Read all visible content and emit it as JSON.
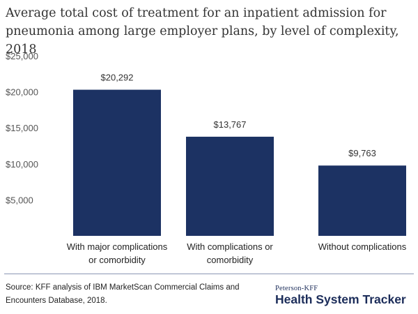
{
  "chart_data": {
    "type": "bar",
    "title": "Average total cost of treatment for an inpatient admission for pneumonia among large employer plans, by level of complexity, 2018",
    "categories": [
      [
        "With major complications",
        "or comorbidity"
      ],
      [
        "With complications or",
        "comorbidity"
      ],
      [
        "Without complications"
      ]
    ],
    "values": [
      20292,
      13767,
      9763
    ],
    "data_labels": [
      "$20,292",
      "$13,767",
      "$9,763"
    ],
    "yticks": [
      5000,
      10000,
      15000,
      20000,
      25000
    ],
    "ytick_labels": [
      "$5,000",
      "$10,000",
      "$15,000",
      "$20,000",
      "$25,000"
    ],
    "ylim": [
      0,
      25000
    ],
    "bar_color": "#1c3263",
    "grid": false,
    "legend": "none"
  },
  "footer": {
    "source": "Source: KFF analysis of IBM MarketScan Commercial Claims and Encounters Database, 2018.",
    "logo_top": "Peterson-KFF",
    "logo_main": "Health System Tracker"
  }
}
